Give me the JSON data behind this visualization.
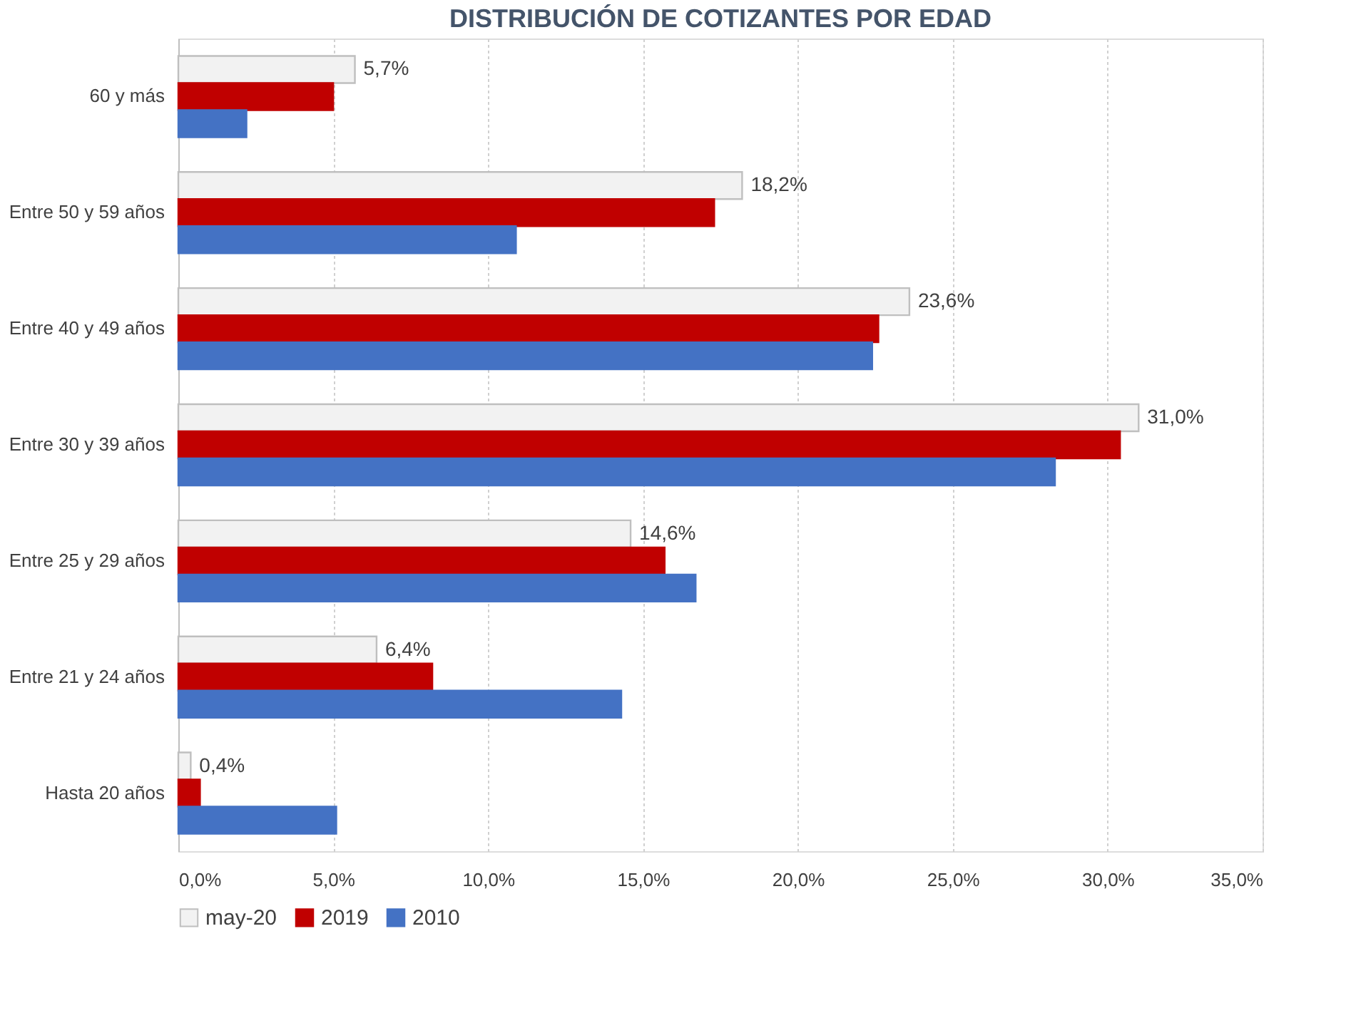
{
  "chart_data": {
    "type": "bar",
    "orientation": "horizontal",
    "title": "DISTRIBUCIÓN DE COTIZANTES POR EDAD",
    "categories": [
      "60 y más",
      "Entre 50 y 59 años",
      "Entre 40 y 49 años",
      "Entre 30 y 39 años",
      "Entre 25 y 29 años",
      "Entre 21 y 24 años",
      "Hasta 20 años"
    ],
    "series": [
      {
        "name": "may-20",
        "color": "#f2f2f2",
        "values": [
          5.7,
          18.2,
          23.6,
          31.0,
          14.6,
          6.4,
          0.4
        ],
        "value_labels": [
          "5,7%",
          "18,2%",
          "23,6%",
          "31,0%",
          "14,6%",
          "6,4%",
          "0,4%"
        ]
      },
      {
        "name": "2019",
        "color": "#c00000",
        "values": [
          5.0,
          17.3,
          22.6,
          30.4,
          15.7,
          8.2,
          0.7
        ]
      },
      {
        "name": "2010",
        "color": "#4472c4",
        "values": [
          2.2,
          10.9,
          22.4,
          28.3,
          16.7,
          14.3,
          5.1
        ]
      }
    ],
    "xlim": [
      0,
      35
    ],
    "xticks": [
      {
        "value": 0,
        "label": "0,0%"
      },
      {
        "value": 5,
        "label": "5,0%"
      },
      {
        "value": 10,
        "label": "10,0%"
      },
      {
        "value": 15,
        "label": "15,0%"
      },
      {
        "value": 20,
        "label": "20,0%"
      },
      {
        "value": 25,
        "label": "25,0%"
      },
      {
        "value": 30,
        "label": "30,0%"
      },
      {
        "value": 35,
        "label": "35,0%"
      }
    ],
    "grid": "x",
    "legend": "bottom"
  }
}
